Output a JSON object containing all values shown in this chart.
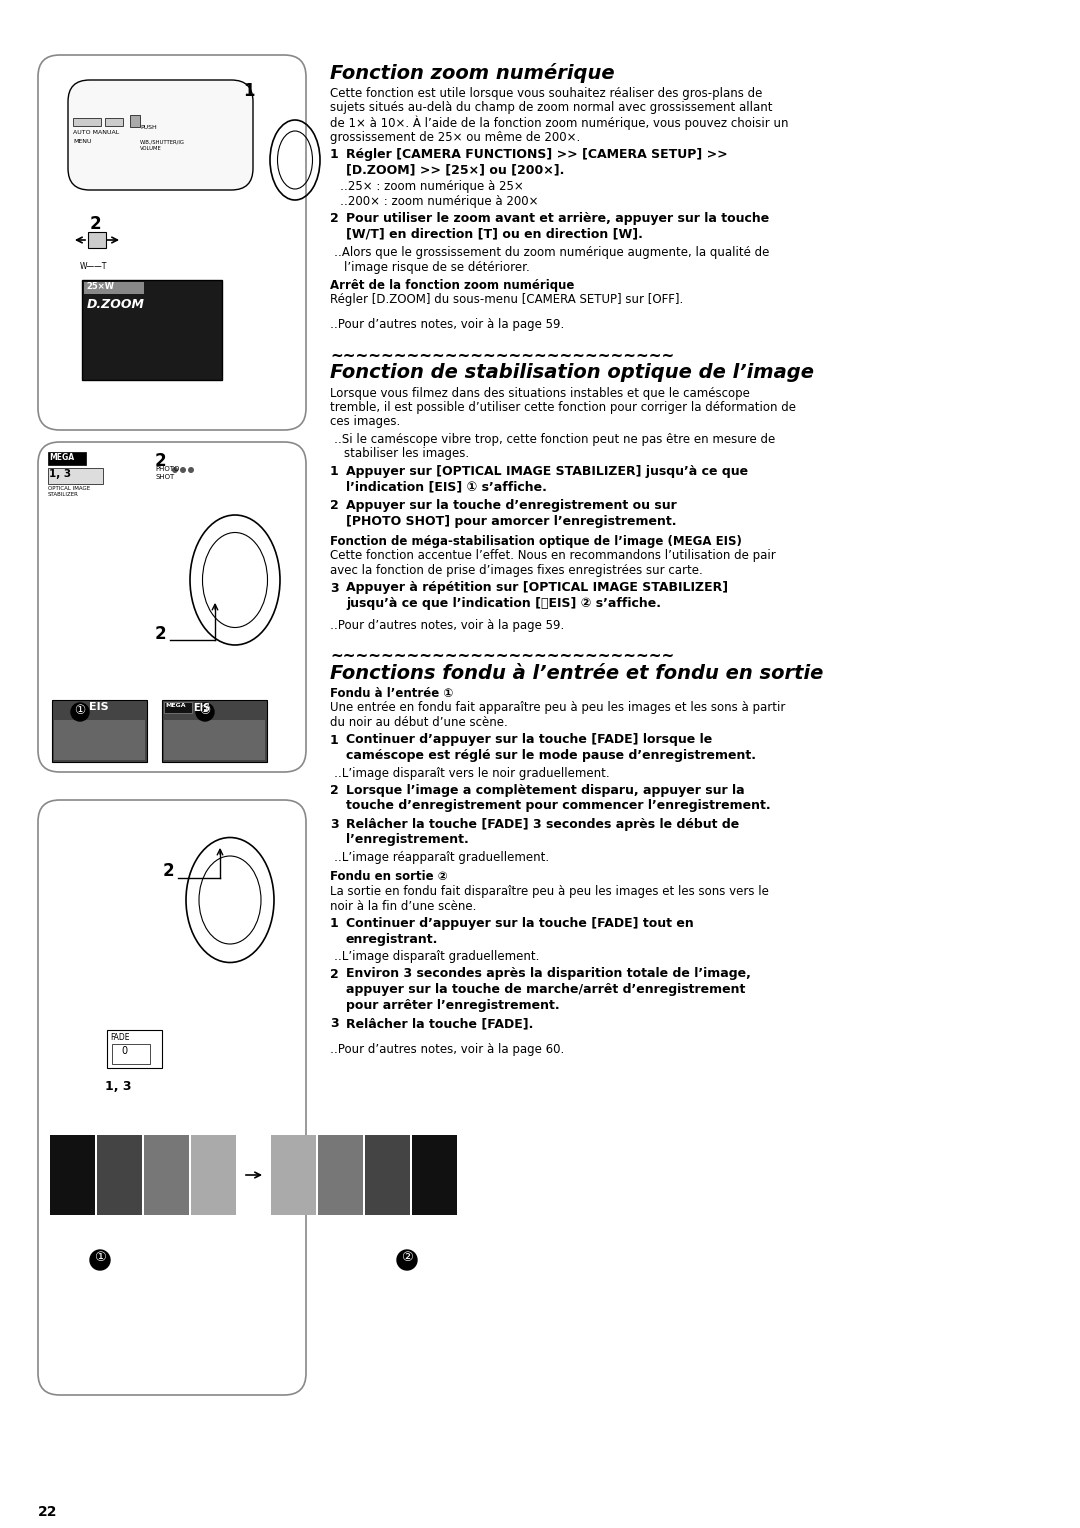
{
  "page_number": "22",
  "bg": "#ffffff",
  "title1": "Fonction zoom numérique",
  "title2": "Fonction de stabilisation optique de l’image",
  "title3": "Fonctions fondu à l’entrée et fondu en sortie",
  "tilde_line": "~~~~~~~~~~~~~~~~~~~~~~~~~~~",
  "s1_intro": [
    "Cette fonction est utile lorsque vous souhaitez réaliser des gros-plans de",
    "sujets situés au-delà du champ de zoom normal avec grossissement allant",
    "de 1× à 10×. À l’aide de la fonction zoom numérique, vous pouvez choisir un",
    "grossissement de 25× ou même de 200×."
  ],
  "s1_step1a": "Régler [CAMERA FUNCTIONS] >> [CAMERA SETUP] >>",
  "s1_step1b": "[D.ZOOM] >> [25×] ou [200×].",
  "s1_b1": "‥25× : zoom numérique à 25×",
  "s1_b2": "‥200× : zoom numérique à 200×",
  "s1_step2a": "Pour utiliser le zoom avant et arrière, appuyer sur la touche",
  "s1_step2b": "[W/T] en direction [T] ou en direction [W].",
  "s1_b3a": "‥Alors que le grossissement du zoom numérique augmente, la qualité de",
  "s1_b3b": "l’image risque de se détériorer.",
  "s1_sub_bold": "Arrêt de la fonction zoom numérique",
  "s1_sub_text": "Régler [D.ZOOM] du sous-menu [CAMERA SETUP] sur [OFF].",
  "s1_note": "‥Pour d’autres notes, voir à la page 59.",
  "s2_intro": [
    "Lorsque vous filmez dans des situations instables et que le caméscope",
    "tremble, il est possible d’utiliser cette fonction pour corriger la déformation de",
    "ces images."
  ],
  "s2_b1a": "‥Si le caméscope vibre trop, cette fonction peut ne pas être en mesure de",
  "s2_b1b": "stabiliser les images.",
  "s2_step1a": "Appuyer sur [OPTICAL IMAGE STABILIZER] jusqu’à ce que",
  "s2_step1b": "l’indication [EIS] ① s’affiche.",
  "s2_step2a": "Appuyer sur la touche d’enregistrement ou sur",
  "s2_step2b": "[PHOTO SHOT] pour amorcer l’enregistrement.",
  "s2_sub_bold": "Fonction de méga-stabilisation optique de l’image (MEGA EIS)",
  "s2_sub_texta": "Cette fonction accentue l’effet. Nous en recommandons l’utilisation de pair",
  "s2_sub_textb": "avec la fonction de prise d’images fixes enregistrées sur carte.",
  "s2_step3a": "Appuyer à répétition sur [OPTICAL IMAGE STABILIZER]",
  "s2_step3b": "jusqu’à ce que l’indication [㎥EIS] ② s’affiche.",
  "s2_note": "‥Pour d’autres notes, voir à la page 59.",
  "s3_h1_bold": "Fondu à l’entrée ①",
  "s3_h1a": "Une entrée en fondu fait apparaître peu à peu les images et les sons à partir",
  "s3_h1b": "du noir au début d’une scène.",
  "s3_step1a": "Continuer d’appuyer sur la touche [FADE] lorsque le",
  "s3_step1b": "caméscope est réglé sur le mode pause d’enregistrement.",
  "s3_b1": "‥L’image disparaît vers le noir graduellement.",
  "s3_step2a": "Lorsque l’image a complètement disparu, appuyer sur la",
  "s3_step2b": "touche d’enregistrement pour commencer l’enregistrement.",
  "s3_step3a": "Relâcher la touche [FADE] 3 secondes après le début de",
  "s3_step3b": "l’enregistrement.",
  "s3_b2": "‥L’image réapparaît graduellement.",
  "s3_h2_bold": "Fondu en sortie ②",
  "s3_h2a": "La sortie en fondu fait disparaître peu à peu les images et les sons vers le",
  "s3_h2b": "noir à la fin d’une scène.",
  "s3_step4a": "Continuer d’appuyer sur la touche [FADE] tout en",
  "s3_step4b": "enregistrant.",
  "s3_b3": "‥L’image disparaît graduellement.",
  "s3_step5a": "Environ 3 secondes après la disparition totale de l’image,",
  "s3_step5b": "appuyer sur la touche de marche/arrêt d’enregistrement",
  "s3_step5c": "pour arrêter l’enregistrement.",
  "s3_step6": "Relâcher la touche [FADE].",
  "s3_note": "‥Pour d’autres notes, voir à la page 60."
}
